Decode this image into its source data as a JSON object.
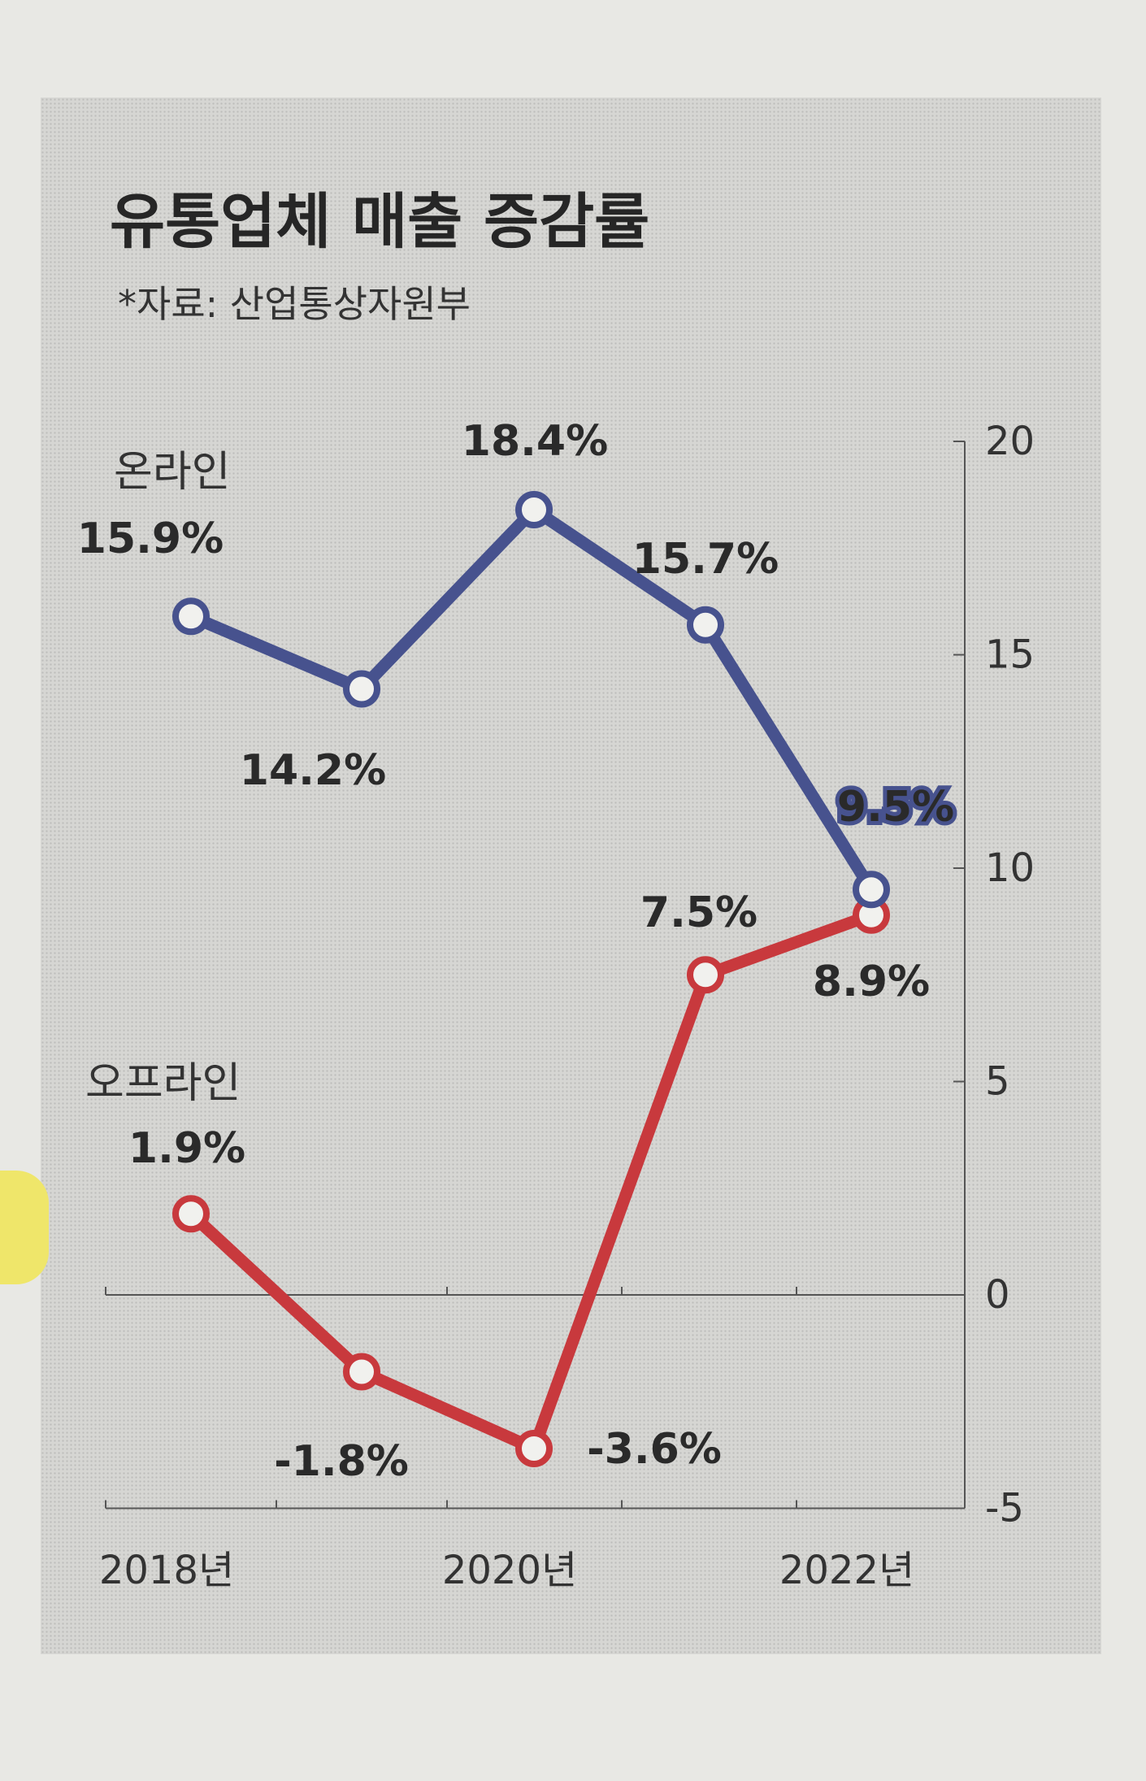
{
  "chart_data": {
    "type": "line",
    "title": "유통업체 매출 증감률",
    "subtitle": "*자료: 산업통상자원부",
    "x": [
      2018,
      2019,
      2020,
      2021,
      2022
    ],
    "x_tick_labels": [
      "2018년",
      "",
      "2020년",
      "",
      "2022년"
    ],
    "y_ticks": [
      "20",
      "15",
      "10",
      "5",
      "0",
      "-5"
    ],
    "ylim": [
      -5,
      20
    ],
    "y_axis_side": "right",
    "series": [
      {
        "name": "온라인",
        "color": "#47528e",
        "values": [
          15.9,
          14.2,
          18.4,
          15.7,
          9.5
        ],
        "labels": [
          "15.9%",
          "14.2%",
          "18.4%",
          "15.7%",
          "9.5%"
        ]
      },
      {
        "name": "오프라인",
        "color": "#c8393d",
        "values": [
          1.9,
          -1.8,
          -3.6,
          7.5,
          8.9
        ],
        "labels": [
          "1.9%",
          "-1.8%",
          "-3.6%",
          "7.5%",
          "8.9%"
        ]
      }
    ]
  }
}
